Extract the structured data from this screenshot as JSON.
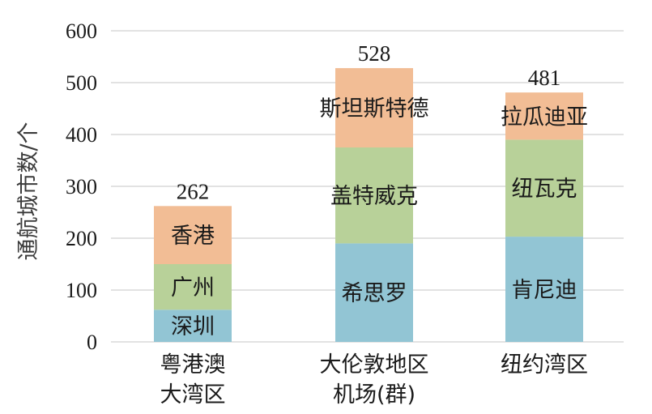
{
  "chart_data": {
    "type": "bar",
    "stacked": true,
    "title": "",
    "xlabel": "",
    "ylabel": "通航城市数/个",
    "ylim": [
      0,
      600
    ],
    "yticks": [
      0,
      100,
      200,
      300,
      400,
      500,
      600
    ],
    "grid": true,
    "legend": "none",
    "colors": {
      "bottom": "#92c5d4",
      "middle": "#b8d199",
      "top": "#f2bd95",
      "grid": "#d0d0d0",
      "text": "#1a1a1a"
    },
    "categories": [
      {
        "lines": [
          "粤港澳",
          "大湾区"
        ]
      },
      {
        "lines": [
          "大伦敦地区",
          "机场(群)"
        ]
      },
      {
        "lines": [
          "纽约湾区"
        ]
      }
    ],
    "stacks": [
      {
        "total": 262,
        "segments": [
          {
            "label": "深圳",
            "value": 62
          },
          {
            "label": "广州",
            "value": 88
          },
          {
            "label": "香港",
            "value": 112
          }
        ]
      },
      {
        "total": 528,
        "segments": [
          {
            "label": "希思罗",
            "value": 190
          },
          {
            "label": "盖特威克",
            "value": 185
          },
          {
            "label": "斯坦斯特德",
            "value": 153
          }
        ]
      },
      {
        "total": 481,
        "segments": [
          {
            "label": "肯尼迪",
            "value": 203
          },
          {
            "label": "纽瓦克",
            "value": 187
          },
          {
            "label": "拉瓜迪亚",
            "value": 91
          }
        ]
      }
    ]
  }
}
